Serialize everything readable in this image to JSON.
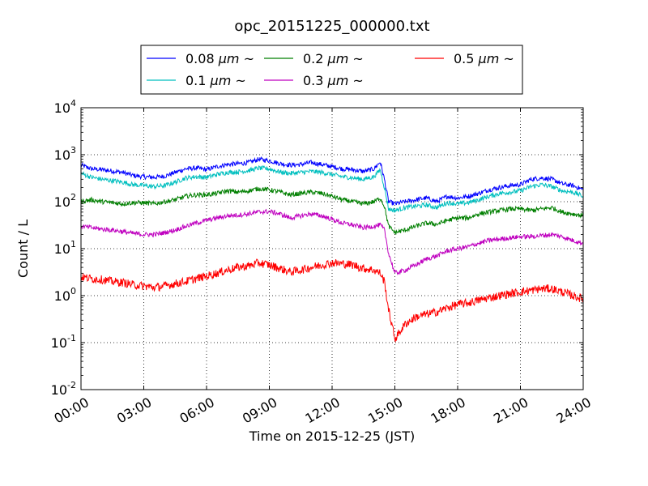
{
  "chart_data": {
    "type": "line",
    "title": "opc_20151225_000000.txt",
    "xlabel": "Time on 2015-12-25 (JST)",
    "ylabel": "Count / L",
    "y_scale": "log",
    "grid": true,
    "legend_position": "top-center",
    "x_ticks": [
      "00:00",
      "03:00",
      "06:00",
      "09:00",
      "12:00",
      "15:00",
      "18:00",
      "21:00",
      "24:00"
    ],
    "x_range_hours": [
      0,
      24
    ],
    "y_ticks": [
      {
        "base": "10",
        "exp": "-2",
        "value": 0.01
      },
      {
        "base": "10",
        "exp": "-1",
        "value": 0.1
      },
      {
        "base": "10",
        "exp": "0",
        "value": 1
      },
      {
        "base": "10",
        "exp": "1",
        "value": 10
      },
      {
        "base": "10",
        "exp": "2",
        "value": 100
      },
      {
        "base": "10",
        "exp": "3",
        "value": 1000
      },
      {
        "base": "10",
        "exp": "4",
        "value": 10000
      }
    ],
    "ylim": [
      0.01,
      10000
    ],
    "x": [
      0,
      0.5,
      1,
      1.5,
      2,
      2.5,
      3,
      3.5,
      4,
      4.5,
      5,
      5.5,
      6,
      6.5,
      7,
      7.5,
      8,
      8.5,
      9,
      9.5,
      10,
      10.5,
      11,
      11.5,
      12,
      12.5,
      13,
      13.5,
      14,
      14.3,
      14.5,
      14.7,
      15,
      15.5,
      16,
      16.5,
      17,
      17.5,
      18,
      18.5,
      19,
      19.5,
      20,
      20.5,
      21,
      21.5,
      22,
      22.5,
      23,
      23.5,
      24
    ],
    "series": [
      {
        "name_prefix": "0.08",
        "name_unit": "μm",
        "name_suffix": "~",
        "color": "#0000ff",
        "values": [
          600,
          500,
          480,
          450,
          420,
          360,
          340,
          330,
          350,
          420,
          500,
          520,
          480,
          560,
          620,
          640,
          680,
          800,
          750,
          650,
          600,
          620,
          680,
          620,
          560,
          500,
          480,
          440,
          500,
          700,
          300,
          100,
          90,
          100,
          110,
          120,
          100,
          130,
          120,
          130,
          150,
          180,
          200,
          220,
          230,
          300,
          320,
          300,
          240,
          220,
          180
        ]
      },
      {
        "name_prefix": "0.1",
        "name_unit": "μm",
        "name_suffix": "~",
        "color": "#00bfbf",
        "values": [
          400,
          330,
          300,
          280,
          260,
          230,
          220,
          210,
          220,
          260,
          320,
          340,
          330,
          380,
          420,
          430,
          460,
          520,
          500,
          430,
          400,
          420,
          440,
          420,
          380,
          340,
          320,
          300,
          340,
          480,
          200,
          70,
          65,
          75,
          80,
          85,
          75,
          95,
          90,
          95,
          110,
          130,
          150,
          160,
          170,
          210,
          230,
          210,
          170,
          160,
          130
        ]
      },
      {
        "name_prefix": "0.2",
        "name_unit": "μm",
        "name_suffix": "~",
        "color": "#007f00",
        "values": [
          100,
          110,
          100,
          95,
          90,
          95,
          95,
          90,
          100,
          110,
          130,
          140,
          140,
          150,
          170,
          160,
          170,
          190,
          180,
          160,
          140,
          150,
          160,
          150,
          130,
          110,
          100,
          90,
          100,
          120,
          80,
          30,
          22,
          25,
          30,
          35,
          33,
          40,
          45,
          45,
          55,
          60,
          65,
          70,
          70,
          65,
          70,
          75,
          60,
          55,
          50
        ]
      },
      {
        "name_prefix": "0.3",
        "name_unit": "μm",
        "name_suffix": "~",
        "color": "#bf00bf",
        "values": [
          30,
          28,
          26,
          25,
          23,
          21,
          20,
          20,
          22,
          25,
          30,
          35,
          40,
          45,
          50,
          52,
          55,
          60,
          62,
          55,
          45,
          50,
          55,
          50,
          42,
          35,
          32,
          28,
          30,
          32,
          25,
          8,
          3,
          3.5,
          4.5,
          6,
          7,
          9,
          10,
          11,
          13,
          15,
          16,
          17,
          18,
          18,
          19,
          20,
          18,
          15,
          13
        ]
      },
      {
        "name_prefix": "0.5",
        "name_unit": "μm",
        "name_suffix": "~",
        "color": "#ff0000",
        "values": [
          2.5,
          2.3,
          2.2,
          2.0,
          1.9,
          1.7,
          1.6,
          1.5,
          1.6,
          1.8,
          2.0,
          2.3,
          2.6,
          3.0,
          3.5,
          4.0,
          4.3,
          5.0,
          4.5,
          3.8,
          3.2,
          3.5,
          4.0,
          4.5,
          5.0,
          4.8,
          4.5,
          3.8,
          3.5,
          3.0,
          2.0,
          0.5,
          0.12,
          0.25,
          0.35,
          0.4,
          0.45,
          0.55,
          0.65,
          0.7,
          0.8,
          0.9,
          1.0,
          1.1,
          1.2,
          1.3,
          1.4,
          1.4,
          1.2,
          1.0,
          0.85
        ]
      }
    ]
  }
}
